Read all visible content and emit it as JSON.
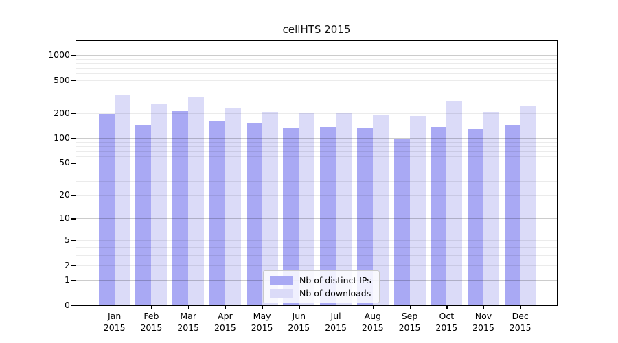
{
  "chart_data": {
    "type": "bar",
    "title": "cellHTS 2015",
    "scale": "log1p",
    "grid": true,
    "categories": [
      "Jan",
      "Feb",
      "Mar",
      "Apr",
      "May",
      "Jun",
      "Jul",
      "Aug",
      "Sep",
      "Oct",
      "Nov",
      "Dec"
    ],
    "year": "2015",
    "series": [
      {
        "name": "Nb of distinct IPs",
        "color": "#a9a9f4",
        "values": [
          195,
          145,
          212,
          160,
          151,
          134,
          137,
          132,
          97,
          137,
          129,
          145
        ]
      },
      {
        "name": "Nb of downloads",
        "color": "#dbdbf8",
        "values": [
          332,
          254,
          317,
          232,
          207,
          203,
          205,
          191,
          185,
          280,
          207,
          246
        ]
      }
    ],
    "yticks": [
      0,
      1,
      2,
      5,
      10,
      20,
      50,
      100,
      200,
      500,
      1000
    ],
    "major_gridlines": [
      1,
      10,
      100,
      1000
    ],
    "minor_gridlines": [
      2,
      3,
      4,
      5,
      6,
      7,
      8,
      9,
      20,
      30,
      40,
      50,
      60,
      70,
      80,
      90,
      200,
      300,
      400,
      500,
      600,
      700,
      800,
      900
    ],
    "ylim": [
      0,
      1050
    ],
    "legend_position": "lower-center",
    "xlabel": "",
    "ylabel": ""
  },
  "colors": {
    "ips_bar": "#a9a9f4",
    "downloads_bar": "#dbdbf8",
    "minor_grid": "rgba(0,0,0,0.08)",
    "major_grid": "rgba(0,0,0,0.20)",
    "spine": "#000000"
  }
}
